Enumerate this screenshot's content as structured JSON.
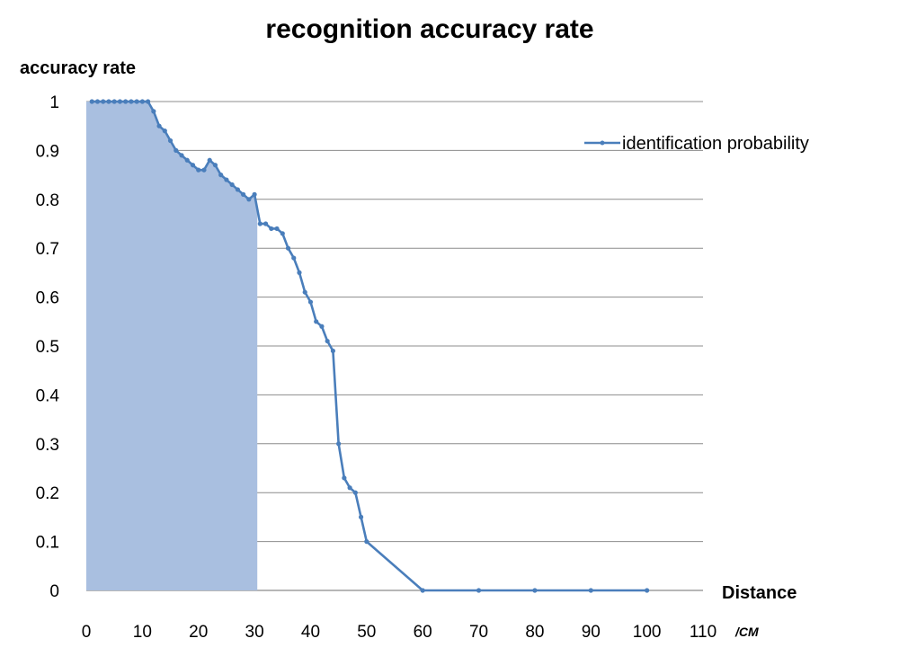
{
  "chart_data": {
    "type": "line",
    "title": "recognition accuracy rate",
    "ylabel": "accuracy rate",
    "xlabel": "Distance",
    "x_unit": "/CM",
    "xlim": [
      0,
      110
    ],
    "ylim": [
      0,
      1
    ],
    "x_ticks": [
      0,
      10,
      20,
      30,
      40,
      50,
      60,
      70,
      80,
      90,
      100,
      110
    ],
    "y_ticks": [
      0,
      0.1,
      0.2,
      0.3,
      0.4,
      0.5,
      0.6,
      0.7,
      0.8,
      0.9,
      1
    ],
    "grid": "horizontal",
    "legend_position": "top-right",
    "shaded_region": {
      "x_start": 0,
      "x_end": 30.5,
      "color": "#a9bfe0"
    },
    "series": [
      {
        "name": "identification probability",
        "color": "#4a7ebb",
        "points": [
          [
            1,
            1
          ],
          [
            2,
            1
          ],
          [
            3,
            1
          ],
          [
            4,
            1
          ],
          [
            5,
            1
          ],
          [
            6,
            1
          ],
          [
            7,
            1
          ],
          [
            8,
            1
          ],
          [
            9,
            1
          ],
          [
            10,
            1
          ],
          [
            11,
            1
          ],
          [
            12,
            0.98
          ],
          [
            13,
            0.95
          ],
          [
            14,
            0.94
          ],
          [
            15,
            0.92
          ],
          [
            16,
            0.9
          ],
          [
            17,
            0.89
          ],
          [
            18,
            0.88
          ],
          [
            19,
            0.87
          ],
          [
            20,
            0.86
          ],
          [
            21,
            0.86
          ],
          [
            22,
            0.88
          ],
          [
            23,
            0.87
          ],
          [
            24,
            0.85
          ],
          [
            25,
            0.84
          ],
          [
            26,
            0.83
          ],
          [
            27,
            0.82
          ],
          [
            28,
            0.81
          ],
          [
            29,
            0.8
          ],
          [
            30,
            0.81
          ],
          [
            31,
            0.75
          ],
          [
            32,
            0.75
          ],
          [
            33,
            0.74
          ],
          [
            34,
            0.74
          ],
          [
            35,
            0.73
          ],
          [
            36,
            0.7
          ],
          [
            37,
            0.68
          ],
          [
            38,
            0.65
          ],
          [
            39,
            0.61
          ],
          [
            40,
            0.59
          ],
          [
            41,
            0.55
          ],
          [
            42,
            0.54
          ],
          [
            43,
            0.51
          ],
          [
            44,
            0.49
          ],
          [
            45,
            0.3
          ],
          [
            46,
            0.23
          ],
          [
            47,
            0.21
          ],
          [
            48,
            0.2
          ],
          [
            49,
            0.15
          ],
          [
            50,
            0.1
          ],
          [
            60,
            0
          ],
          [
            70,
            0
          ],
          [
            80,
            0
          ],
          [
            90,
            0
          ],
          [
            100,
            0
          ]
        ]
      }
    ]
  }
}
